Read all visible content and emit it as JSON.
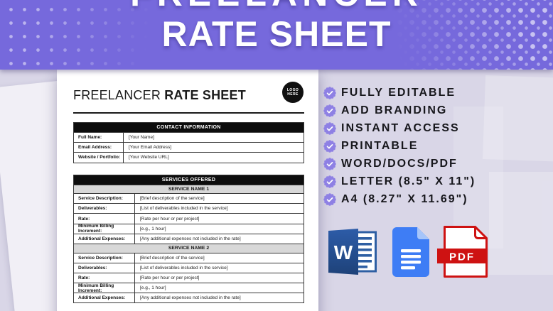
{
  "hero": {
    "title_line1": "FREELANCER",
    "title_line2": "RATE SHEET"
  },
  "document": {
    "title_regular": "FREELANCER",
    "title_bold": "RATE SHEET",
    "logo_line1": "LOGO",
    "logo_line2": "HERE",
    "contact": {
      "header": "CONTACT INFORMATION",
      "rows": [
        {
          "label": "Full Name:",
          "value": "[Your Name]"
        },
        {
          "label": "Email Address:",
          "value": "[Your Email Address]"
        },
        {
          "label": "Website / Portfolio:",
          "value": "[Your Website URL]"
        }
      ]
    },
    "services": {
      "header": "SERVICES OFFERED",
      "sections": [
        {
          "name": "SERVICE NAME 1",
          "rows": [
            {
              "label": "Service Description:",
              "value": "[Brief description of the service]"
            },
            {
              "label": "Deliverables:",
              "value": "[List of deliverables included in the service]"
            },
            {
              "label": "Rate:",
              "value": "[Rate per hour or per project]"
            },
            {
              "label": "Minimum Billing Increment:",
              "value": "[e.g., 1 hour]"
            },
            {
              "label": "Additional Expenses:",
              "value": "[Any additional expenses not included in the rate]"
            }
          ]
        },
        {
          "name": "SERVICE NAME 2",
          "rows": [
            {
              "label": "Service Description:",
              "value": "[Brief description of the service]"
            },
            {
              "label": "Deliverables:",
              "value": "[List of deliverables included in the service]"
            },
            {
              "label": "Rate:",
              "value": "[Rate per hour or per project]"
            },
            {
              "label": "Minimum Billing Increment:",
              "value": "[e.g., 1 hour]"
            },
            {
              "label": "Additional Expenses:",
              "value": "[Any additional expenses not included in the rate]"
            }
          ]
        }
      ]
    }
  },
  "features": {
    "items": [
      "FULLY EDITABLE",
      "ADD BRANDING",
      "INSTANT ACCESS",
      "PRINTABLE",
      "WORD/DOCS/PDF",
      "LETTER (8.5\" X 11\")",
      "A4 (8.27\" X 11.69\")"
    ]
  },
  "icons": {
    "word_letter": "W",
    "pdf_label": "PDF"
  },
  "colors": {
    "header_purple": "#7669DC",
    "page_bg": "#D9D6E7",
    "badge_purple": "#8E80E4",
    "text_dark": "#17171C",
    "table_black": "#0D0D0D",
    "subhead_gray": "#D8D8D8",
    "word_blue": "#2B579A",
    "docs_blue": "#3E7DF5",
    "docs_fold": "#A6C5FA",
    "pdf_red": "#CE1212"
  }
}
